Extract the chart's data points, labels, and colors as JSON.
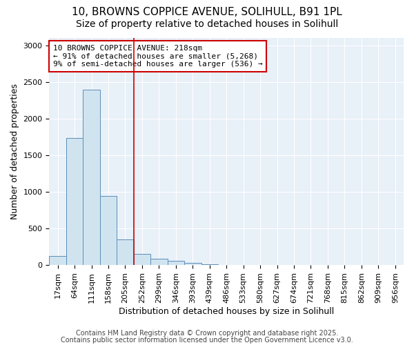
{
  "title1": "10, BROWNS COPPICE AVENUE, SOLIHULL, B91 1PL",
  "title2": "Size of property relative to detached houses in Solihull",
  "xlabel": "Distribution of detached houses by size in Solihull",
  "ylabel": "Number of detached properties",
  "bar_labels": [
    "17sqm",
    "64sqm",
    "111sqm",
    "158sqm",
    "205sqm",
    "252sqm",
    "299sqm",
    "346sqm",
    "393sqm",
    "439sqm",
    "486sqm",
    "533sqm",
    "580sqm",
    "627sqm",
    "674sqm",
    "721sqm",
    "768sqm",
    "815sqm",
    "862sqm",
    "909sqm",
    "956sqm"
  ],
  "bar_values": [
    120,
    1730,
    2390,
    940,
    350,
    155,
    90,
    55,
    25,
    10,
    5,
    5,
    0,
    0,
    0,
    0,
    0,
    0,
    0,
    0,
    0
  ],
  "bar_color": "#d0e4f0",
  "bar_edgecolor": "#5b8db8",
  "vline_x_index": 4.5,
  "vline_color": "#cc0000",
  "annotation_text": "10 BROWNS COPPICE AVENUE: 218sqm\n← 91% of detached houses are smaller (5,268)\n9% of semi-detached houses are larger (536) →",
  "annotation_box_color": "#ffffff",
  "annotation_box_edgecolor": "#cc0000",
  "ylim": [
    0,
    3100
  ],
  "yticks": [
    0,
    500,
    1000,
    1500,
    2000,
    2500,
    3000
  ],
  "background_color": "#e8f0f8",
  "footer1": "Contains HM Land Registry data © Crown copyright and database right 2025.",
  "footer2": "Contains public sector information licensed under the Open Government Licence v3.0.",
  "title_fontsize": 11,
  "subtitle_fontsize": 10,
  "tick_fontsize": 8,
  "ylabel_fontsize": 9,
  "xlabel_fontsize": 9,
  "footer_fontsize": 7
}
